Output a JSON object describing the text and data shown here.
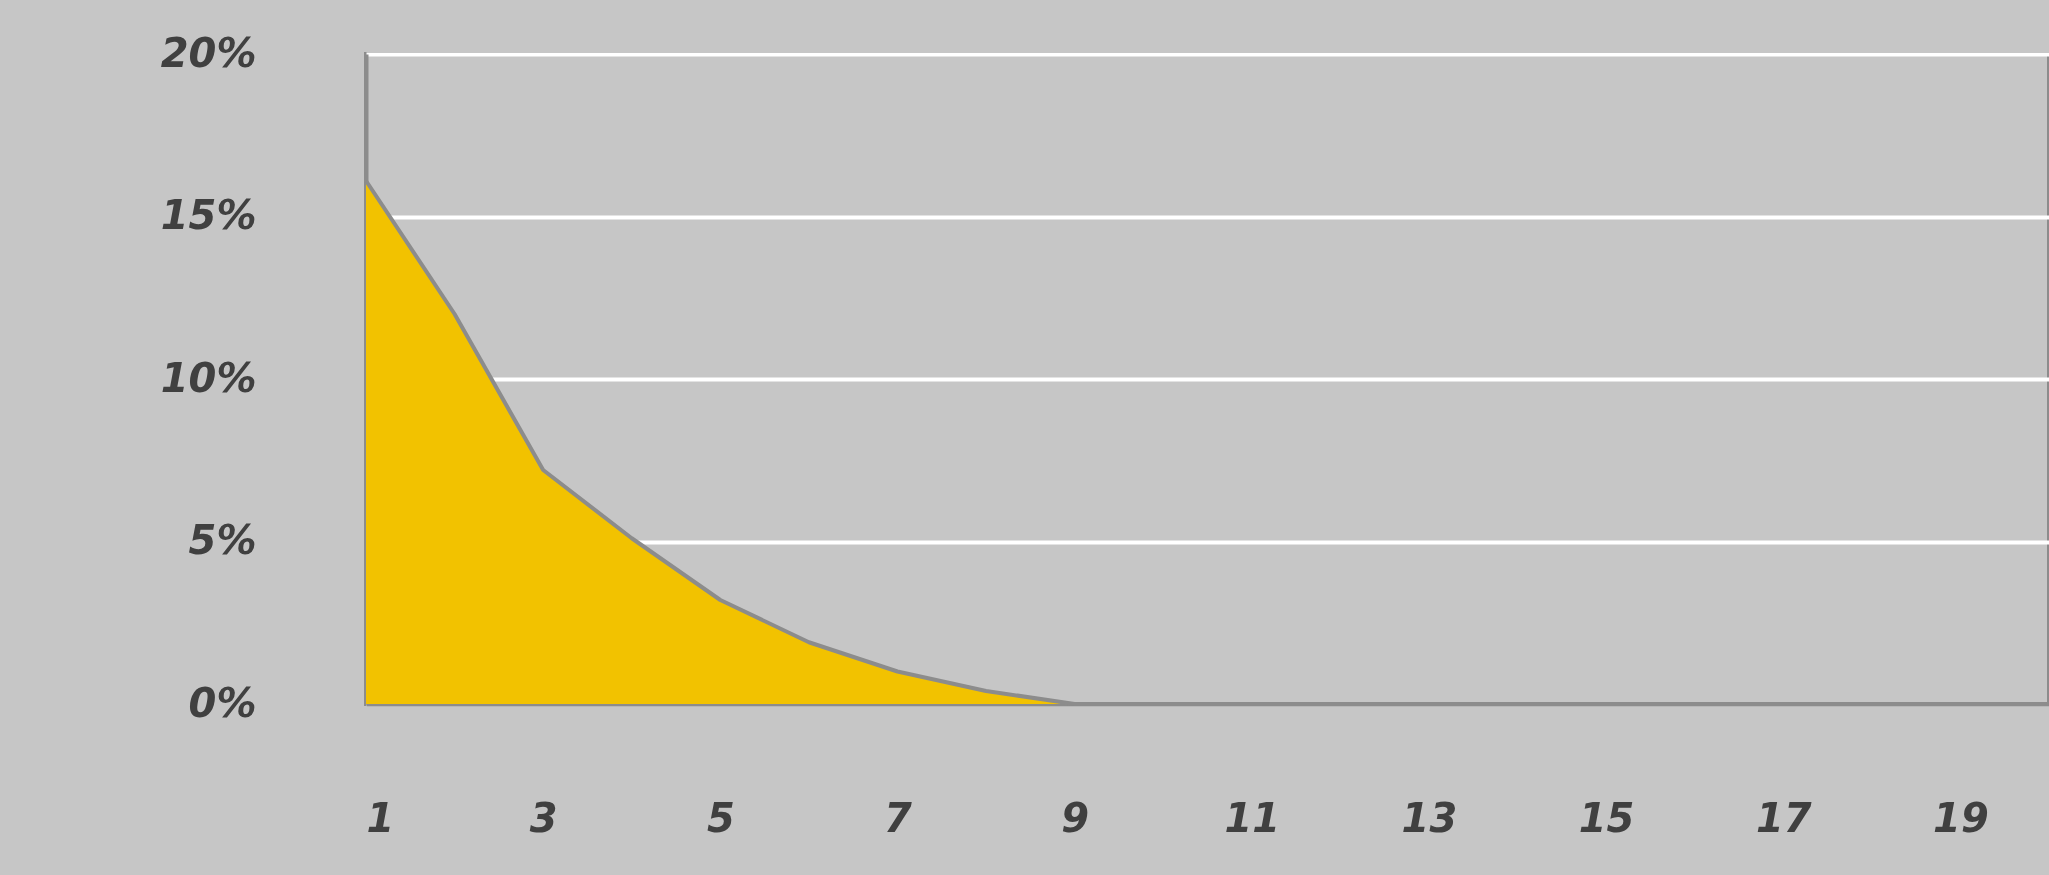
{
  "chart_data": {
    "type": "area",
    "x": [
      1,
      2,
      3,
      4,
      5,
      6,
      7,
      8,
      9,
      10,
      11,
      12,
      13,
      14,
      15,
      16,
      17,
      18,
      19,
      20
    ],
    "series": [
      {
        "color": "#f2c200",
        "values": [
          16.1,
          12.0,
          7.2,
          5.1,
          3.2,
          1.9,
          1.0,
          0.4,
          0,
          0,
          0,
          0,
          0,
          0,
          0,
          0,
          0,
          0,
          0,
          0
        ]
      }
    ],
    "xlim": [
      1,
      20
    ],
    "xticks": [
      1,
      3,
      5,
      7,
      9,
      11,
      13,
      15,
      17,
      19
    ],
    "ylim": [
      0,
      20
    ],
    "yticks": [
      {
        "value": 0,
        "label": "0%"
      },
      {
        "value": 5,
        "label": "5%"
      },
      {
        "value": 10,
        "label": "10%"
      },
      {
        "value": 15,
        "label": "15%"
      },
      {
        "value": 20,
        "label": "20%"
      }
    ],
    "grid": "y"
  }
}
